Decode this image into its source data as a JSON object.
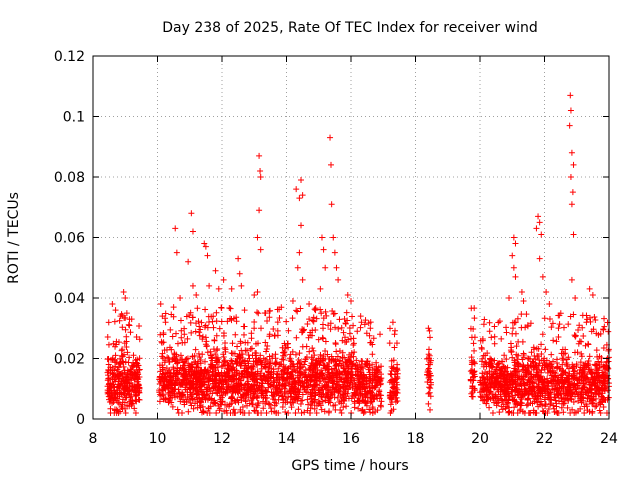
{
  "chart_data": {
    "type": "scatter",
    "title": "Day 238 of 2025, Rate Of TEC Index for receiver wind",
    "xlabel": "GPS time / hours",
    "ylabel": "ROTI / TECUs",
    "xlim": [
      8,
      24
    ],
    "ylim": [
      0,
      0.12
    ],
    "x_ticks": [
      8,
      10,
      12,
      14,
      16,
      18,
      20,
      22,
      24
    ],
    "x_tick_labels": [
      "8",
      "10",
      "12",
      "14",
      "16",
      "18",
      "20",
      "22",
      "24"
    ],
    "y_ticks": [
      0,
      0.02,
      0.04,
      0.06,
      0.08,
      0.1,
      0.12
    ],
    "y_tick_labels": [
      "0",
      "0.02",
      "0.04",
      "0.06",
      "0.08",
      "0.1",
      "0.12"
    ],
    "grid": true,
    "marker": "+",
    "color": "#ff0000",
    "series": [
      {
        "name": "ROTI",
        "points": [
          [
            8.6,
            0.038
          ],
          [
            8.7,
            0.036
          ],
          [
            8.85,
            0.034
          ],
          [
            8.95,
            0.042
          ],
          [
            9.0,
            0.04
          ],
          [
            9.05,
            0.035
          ],
          [
            9.2,
            0.033
          ],
          [
            10.1,
            0.038
          ],
          [
            10.15,
            0.034
          ],
          [
            10.25,
            0.032
          ],
          [
            10.5,
            0.037
          ],
          [
            10.55,
            0.063
          ],
          [
            10.6,
            0.055
          ],
          [
            10.7,
            0.04
          ],
          [
            10.95,
            0.052
          ],
          [
            11.05,
            0.068
          ],
          [
            11.1,
            0.062
          ],
          [
            11.1,
            0.044
          ],
          [
            11.2,
            0.041
          ],
          [
            11.45,
            0.058
          ],
          [
            11.5,
            0.057
          ],
          [
            11.55,
            0.054
          ],
          [
            11.6,
            0.044
          ],
          [
            11.8,
            0.049
          ],
          [
            11.9,
            0.043
          ],
          [
            12.05,
            0.046
          ],
          [
            12.3,
            0.043
          ],
          [
            12.5,
            0.053
          ],
          [
            12.55,
            0.048
          ],
          [
            12.6,
            0.044
          ],
          [
            12.7,
            0.036
          ],
          [
            13.0,
            0.041
          ],
          [
            13.15,
            0.087
          ],
          [
            13.18,
            0.082
          ],
          [
            13.2,
            0.08
          ],
          [
            13.15,
            0.069
          ],
          [
            13.1,
            0.06
          ],
          [
            13.2,
            0.056
          ],
          [
            13.1,
            0.042
          ],
          [
            13.35,
            0.035
          ],
          [
            14.2,
            0.039
          ],
          [
            14.3,
            0.076
          ],
          [
            14.4,
            0.073
          ],
          [
            14.45,
            0.079
          ],
          [
            14.5,
            0.074
          ],
          [
            14.45,
            0.064
          ],
          [
            14.4,
            0.055
          ],
          [
            14.35,
            0.05
          ],
          [
            14.5,
            0.046
          ],
          [
            14.7,
            0.038
          ],
          [
            14.9,
            0.036
          ],
          [
            15.05,
            0.043
          ],
          [
            15.1,
            0.06
          ],
          [
            15.15,
            0.056
          ],
          [
            15.2,
            0.05
          ],
          [
            15.35,
            0.093
          ],
          [
            15.38,
            0.084
          ],
          [
            15.4,
            0.071
          ],
          [
            15.45,
            0.06
          ],
          [
            15.5,
            0.055
          ],
          [
            15.55,
            0.05
          ],
          [
            15.6,
            0.046
          ],
          [
            15.9,
            0.041
          ],
          [
            16.0,
            0.039
          ],
          [
            16.3,
            0.034
          ],
          [
            16.6,
            0.03
          ],
          [
            16.9,
            0.028
          ],
          [
            17.3,
            0.032
          ],
          [
            17.35,
            0.028
          ],
          [
            18.4,
            0.03
          ],
          [
            18.45,
            0.027
          ],
          [
            18.4,
            0.018
          ],
          [
            18.45,
            0.013
          ],
          [
            18.4,
            0.005
          ],
          [
            18.45,
            0.003
          ],
          [
            19.75,
            0.027
          ],
          [
            19.8,
            0.025
          ],
          [
            19.75,
            0.018
          ],
          [
            19.8,
            0.014
          ],
          [
            20.3,
            0.029
          ],
          [
            20.35,
            0.027
          ],
          [
            20.9,
            0.04
          ],
          [
            21.05,
            0.06
          ],
          [
            21.1,
            0.058
          ],
          [
            21.0,
            0.054
          ],
          [
            21.05,
            0.05
          ],
          [
            21.1,
            0.047
          ],
          [
            21.3,
            0.042
          ],
          [
            21.35,
            0.039
          ],
          [
            21.8,
            0.067
          ],
          [
            21.85,
            0.065
          ],
          [
            21.75,
            0.063
          ],
          [
            21.9,
            0.061
          ],
          [
            21.85,
            0.053
          ],
          [
            21.95,
            0.047
          ],
          [
            22.05,
            0.042
          ],
          [
            22.15,
            0.038
          ],
          [
            22.8,
            0.107
          ],
          [
            22.82,
            0.102
          ],
          [
            22.78,
            0.097
          ],
          [
            22.85,
            0.088
          ],
          [
            22.9,
            0.084
          ],
          [
            22.82,
            0.08
          ],
          [
            22.88,
            0.075
          ],
          [
            22.85,
            0.071
          ],
          [
            22.9,
            0.061
          ],
          [
            22.85,
            0.046
          ],
          [
            22.95,
            0.04
          ],
          [
            23.4,
            0.043
          ],
          [
            23.5,
            0.041
          ],
          [
            23.3,
            0.032
          ]
        ]
      }
    ],
    "dense_bands": [
      {
        "x": [
          8.45,
          9.45
        ],
        "y_mean": 0.012,
        "y_spread": 0.011,
        "count": 320
      },
      {
        "x": [
          10.05,
          16.1
        ],
        "y_mean": 0.013,
        "y_spread": 0.012,
        "count": 1750
      },
      {
        "x": [
          16.1,
          16.95
        ],
        "y_mean": 0.011,
        "y_spread": 0.01,
        "count": 230
      },
      {
        "x": [
          17.2,
          17.45
        ],
        "y_mean": 0.011,
        "y_spread": 0.01,
        "count": 70
      },
      {
        "x": [
          18.35,
          18.5
        ],
        "y_mean": 0.016,
        "y_spread": 0.011,
        "count": 30
      },
      {
        "x": [
          19.7,
          19.85
        ],
        "y_mean": 0.014,
        "y_spread": 0.011,
        "count": 40
      },
      {
        "x": [
          20.0,
          24.0
        ],
        "y_mean": 0.012,
        "y_spread": 0.011,
        "count": 1150
      }
    ]
  }
}
